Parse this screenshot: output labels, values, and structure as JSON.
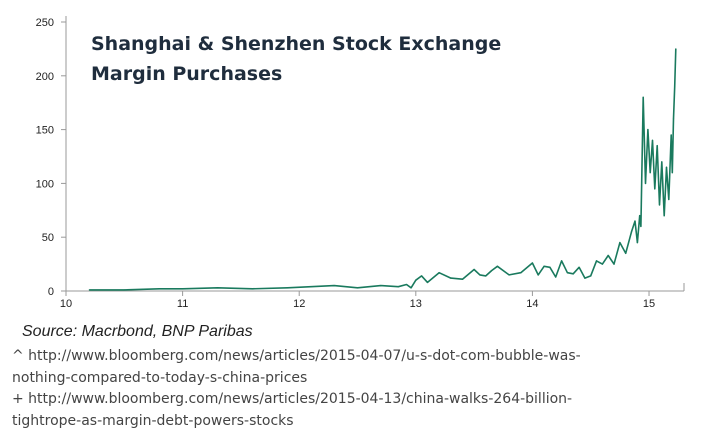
{
  "chart_data": {
    "type": "line",
    "title_lines": [
      "Shanghai & Shenzhen Stock Exchange",
      "Margin Purchases"
    ],
    "xlabel": "",
    "ylabel": "",
    "xlim": [
      10,
      15.3
    ],
    "ylim": [
      0,
      250
    ],
    "x_ticks": [
      "10",
      "11",
      "12",
      "13",
      "14",
      "15"
    ],
    "y_ticks": [
      "0",
      "50",
      "100",
      "150",
      "200",
      "250"
    ],
    "grid": false,
    "legend": "none",
    "line_color": "#1a7a5e",
    "series": [
      {
        "x": [
          10.2,
          10.5,
          10.8,
          11.0,
          11.3,
          11.6,
          11.9,
          12.1,
          12.3,
          12.5,
          12.7,
          12.85,
          12.92,
          12.96,
          13.0,
          13.05,
          13.1,
          13.2,
          13.3,
          13.4,
          13.5,
          13.55,
          13.6,
          13.65,
          13.7,
          13.8,
          13.9,
          14.0,
          14.05,
          14.1,
          14.15,
          14.2,
          14.25,
          14.3,
          14.35,
          14.4,
          14.45,
          14.5,
          14.55,
          14.6,
          14.65,
          14.7,
          14.75,
          14.8,
          14.85,
          14.88,
          14.9,
          14.92,
          14.93,
          14.95,
          14.97,
          14.99,
          15.01,
          15.03,
          15.05,
          15.07,
          15.09,
          15.11,
          15.13,
          15.15,
          15.17,
          15.19,
          15.2,
          15.21,
          15.22,
          15.23
        ],
        "y": [
          1,
          1,
          2,
          2,
          3,
          2,
          3,
          4,
          5,
          3,
          5,
          4,
          6,
          3,
          10,
          14,
          8,
          17,
          12,
          11,
          20,
          15,
          14,
          19,
          23,
          15,
          17,
          26,
          15,
          23,
          22,
          13,
          28,
          17,
          16,
          22,
          12,
          14,
          28,
          25,
          33,
          25,
          45,
          35,
          55,
          65,
          45,
          70,
          60,
          180,
          100,
          150,
          110,
          140,
          95,
          135,
          80,
          120,
          70,
          115,
          85,
          145,
          110,
          160,
          190,
          225
        ]
      }
    ]
  },
  "source_text": "Source: Macrbond, BNP Paribas",
  "references": [
    "^ http://www.bloomberg.com/news/articles/2015-04-07/u-s-dot-com-bubble-was-",
    "nothing-compared-to-today-s-china-prices",
    "+ http://www.bloomberg.com/news/articles/2015-04-13/china-walks-264-billion-",
    "tightrope-as-margin-debt-powers-stocks"
  ]
}
